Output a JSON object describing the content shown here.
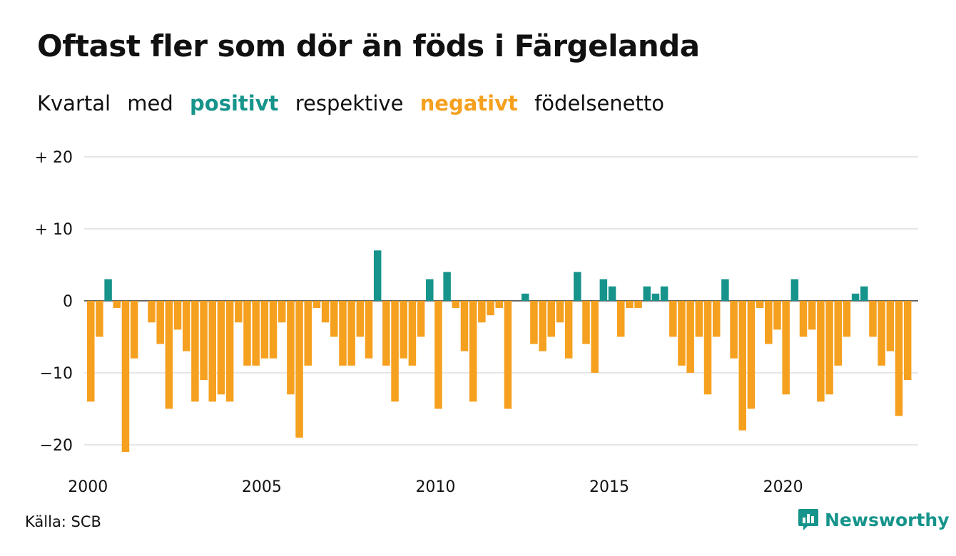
{
  "header": {
    "title": "Oftast fler som dör än föds i Färgelanda",
    "subtitle": {
      "w1": "Kvartal",
      "w2": "med",
      "positive": "positivt",
      "w3": "respektive",
      "negative": "negativt",
      "w4": "födelsenetto"
    }
  },
  "footer": {
    "source": "Källa: SCB",
    "brand": "Newsworthy"
  },
  "colors": {
    "positive": "#16948b",
    "negative": "#f5a01f",
    "grid": "#dddddd",
    "text": "#111111"
  },
  "icons": {
    "brand": "bar-chart-speech-bubble-icon"
  },
  "chart_data": {
    "type": "bar",
    "ylim": [
      -23,
      20
    ],
    "yticks": [
      20,
      10,
      0,
      -10,
      -20
    ],
    "ytick_labels": [
      "+ 20",
      "+ 10",
      "0",
      "−10",
      "−20"
    ],
    "xtick_labels": [
      "2000",
      "2005",
      "2010",
      "2015",
      "2020"
    ],
    "grid": true,
    "start": "2000 Q1",
    "values": [
      -14,
      -5,
      3,
      -1,
      -21,
      -8,
      0,
      -3,
      -6,
      -15,
      -4,
      -7,
      -14,
      -11,
      -14,
      -13,
      -14,
      -3,
      -9,
      -9,
      -8,
      -8,
      -3,
      -13,
      -19,
      -9,
      -1,
      -3,
      -5,
      -9,
      -9,
      -5,
      -8,
      7,
      -9,
      -14,
      -8,
      -9,
      -5,
      3,
      -15,
      4,
      -1,
      -7,
      -14,
      -3,
      -2,
      -1,
      -15,
      0,
      1,
      -6,
      -7,
      -5,
      -3,
      -8,
      4,
      -6,
      -10,
      3,
      2,
      -5,
      -1,
      -1,
      2,
      1,
      2,
      -5,
      -9,
      -10,
      -5,
      -13,
      -5,
      3,
      -8,
      -18,
      -15,
      -1,
      -6,
      -4,
      -13,
      3,
      -5,
      -4,
      -14,
      -13,
      -9,
      -5,
      1,
      2,
      -5,
      -9,
      -7,
      -16,
      -11
    ]
  }
}
